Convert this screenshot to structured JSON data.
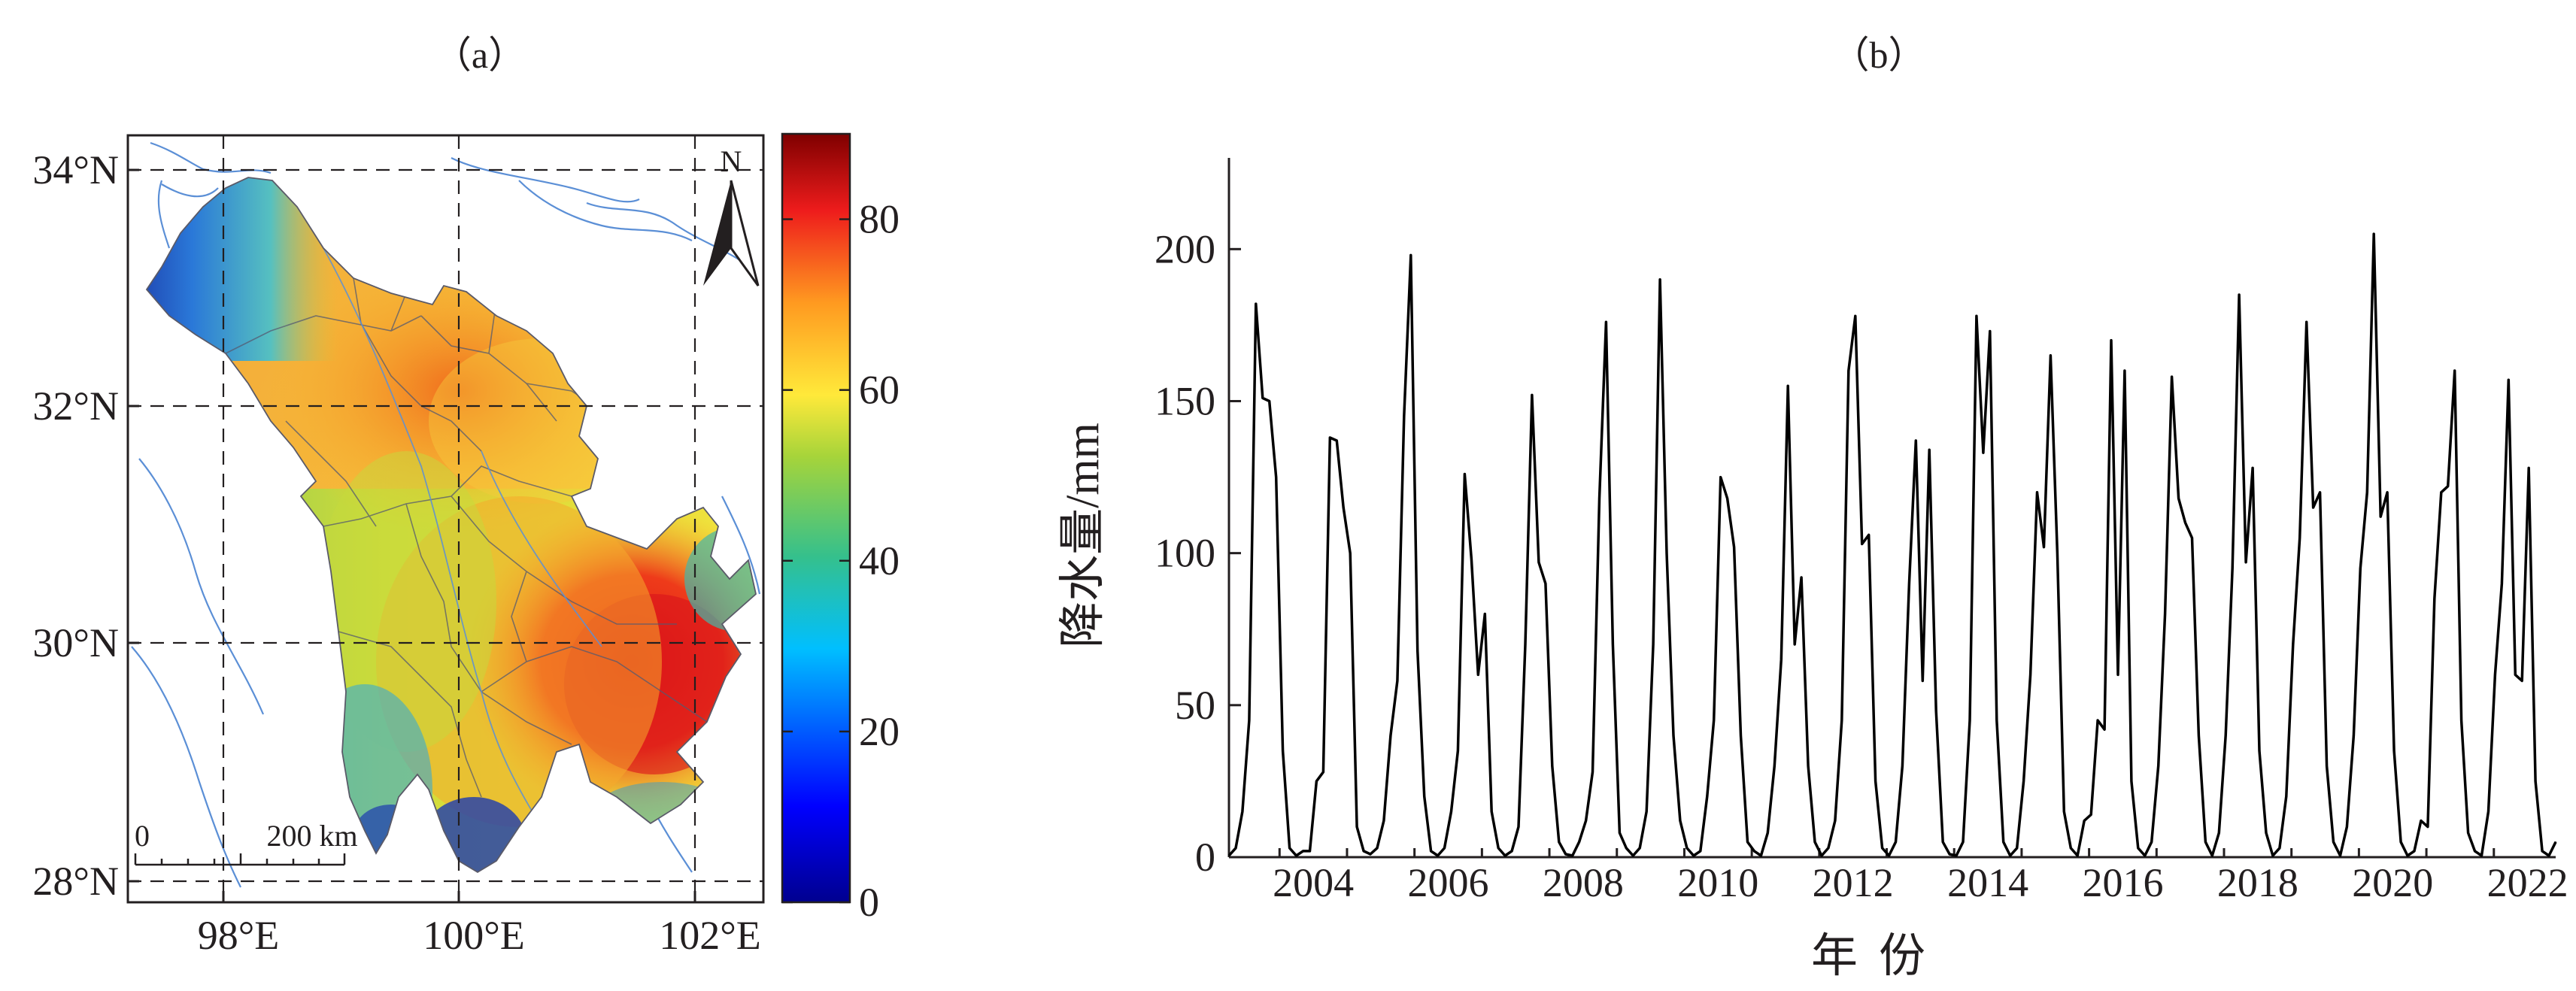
{
  "panel_a": {
    "label": "（a）",
    "lat_labels": [
      "34°N",
      "32°N",
      "30°N",
      "28°N"
    ],
    "lon_labels": [
      "98°E",
      "100°E",
      "102°E"
    ],
    "scalebar": {
      "start": "0",
      "end": "200 km"
    },
    "north_label": "N",
    "colorbar": {
      "ticks": [
        "0",
        "20",
        "40",
        "60",
        "80"
      ],
      "range": [
        0,
        90
      ],
      "colormap": "jet"
    }
  },
  "panel_b": {
    "label": "（b）",
    "chart_data": {
      "type": "line",
      "xlabel": "年份",
      "ylabel": "降水量/mm",
      "ylim": [
        0,
        230
      ],
      "x_ticks": [
        "2004",
        "2006",
        "2008",
        "2010",
        "2012",
        "2014",
        "2016",
        "2018",
        "2020",
        "2022"
      ],
      "y_ticks": [
        "0",
        "50",
        "100",
        "150",
        "200"
      ],
      "line_color": "#000000",
      "x_start": "2003-04",
      "x_end": "2022-12",
      "values": [
        0.5,
        3,
        15,
        45,
        182,
        151,
        150,
        125,
        35,
        3,
        0.5,
        2,
        2,
        25,
        28,
        138,
        137,
        115,
        100,
        10,
        2,
        1,
        3,
        12,
        40,
        58,
        145,
        198,
        68,
        20,
        2,
        0.5,
        3,
        15,
        35,
        126,
        98,
        60,
        80,
        15,
        3,
        0.5,
        2,
        10,
        70,
        152,
        97,
        90,
        30,
        5,
        1,
        0.5,
        5,
        12,
        28,
        118,
        176,
        70,
        8,
        3,
        0.5,
        3,
        15,
        70,
        190,
        100,
        40,
        12,
        3,
        0.5,
        2,
        20,
        45,
        125,
        118,
        102,
        40,
        5,
        2,
        0.5,
        8,
        30,
        65,
        155,
        70,
        92,
        30,
        5,
        0.5,
        3,
        12,
        45,
        160,
        178,
        103,
        106,
        25,
        3,
        0.5,
        5,
        30,
        90,
        137,
        58,
        134,
        48,
        5,
        1,
        0.5,
        5,
        45,
        178,
        133,
        173,
        45,
        5,
        0.5,
        3,
        25,
        60,
        120,
        102,
        165,
        100,
        15,
        3,
        0.5,
        12,
        14,
        45,
        42,
        170,
        60,
        160,
        25,
        3,
        0.5,
        5,
        30,
        80,
        158,
        118,
        110,
        105,
        40,
        5,
        0.5,
        8,
        40,
        95,
        185,
        97,
        128,
        35,
        8,
        0.5,
        3,
        20,
        70,
        105,
        176,
        115,
        120,
        30,
        5,
        0.5,
        10,
        40,
        95,
        120,
        205,
        112,
        120,
        35,
        5,
        0.5,
        2,
        12,
        10,
        85,
        120,
        122,
        160,
        45,
        8,
        2,
        0.5,
        15,
        60,
        90,
        157,
        60,
        58,
        128,
        25,
        2,
        0.5,
        5
      ]
    }
  }
}
